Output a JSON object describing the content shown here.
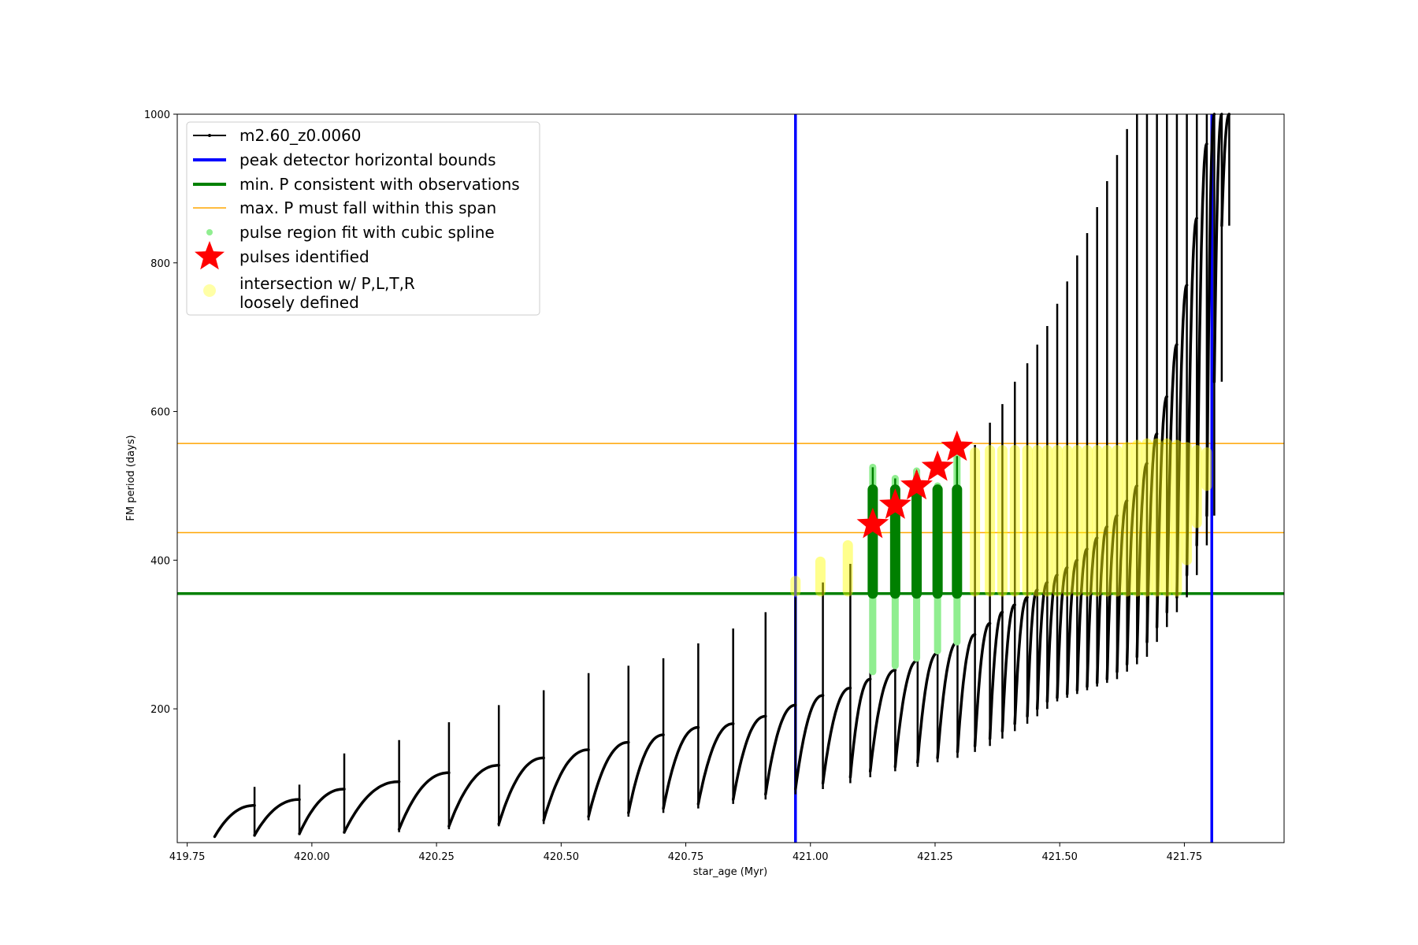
{
  "chart_data": {
    "type": "scatter",
    "title": "",
    "xlabel": "star_age (Myr)",
    "ylabel": "FM period (days)",
    "xlim": [
      419.73,
      421.95
    ],
    "ylim": [
      20,
      1000
    ],
    "xticks": [
      419.75,
      420.0,
      420.25,
      420.5,
      420.75,
      421.0,
      421.25,
      421.5,
      421.75
    ],
    "xtick_labels": [
      "419.75",
      "420.00",
      "420.25",
      "420.50",
      "420.75",
      "421.00",
      "421.25",
      "421.50",
      "421.75"
    ],
    "yticks": [
      200,
      400,
      600,
      800,
      1000
    ],
    "ytick_labels": [
      "200",
      "400",
      "600",
      "800",
      "1000"
    ],
    "grid": false,
    "legend_position": "top-left",
    "colors": {
      "model": "#000000",
      "bounds": "#0000ff",
      "min_p": "#008000",
      "max_p": "#ffa500",
      "spline": "#90ee90",
      "pulse": "#ff0000",
      "intersection": "#ffff00"
    },
    "series": [
      {
        "name": "m2.60_z0.0060",
        "kind": "line-with-dots",
        "pulses": [
          {
            "start": 419.805,
            "end": 419.885,
            "base": 28,
            "peak": 70,
            "spike_top": 95
          },
          {
            "start": 419.885,
            "end": 419.975,
            "base": 30,
            "peak": 78,
            "spike_top": 98
          },
          {
            "start": 419.975,
            "end": 420.065,
            "base": 32,
            "peak": 92,
            "spike_top": 140
          },
          {
            "start": 420.065,
            "end": 420.175,
            "base": 34,
            "peak": 102,
            "spike_top": 158
          },
          {
            "start": 420.175,
            "end": 420.275,
            "base": 38,
            "peak": 114,
            "spike_top": 182
          },
          {
            "start": 420.275,
            "end": 420.375,
            "base": 42,
            "peak": 124,
            "spike_top": 205
          },
          {
            "start": 420.375,
            "end": 420.465,
            "base": 45,
            "peak": 134,
            "spike_top": 225
          },
          {
            "start": 420.465,
            "end": 420.555,
            "base": 50,
            "peak": 145,
            "spike_top": 248
          },
          {
            "start": 420.555,
            "end": 420.635,
            "base": 55,
            "peak": 155,
            "spike_top": 258
          },
          {
            "start": 420.635,
            "end": 420.705,
            "base": 60,
            "peak": 165,
            "spike_top": 268
          },
          {
            "start": 420.705,
            "end": 420.775,
            "base": 66,
            "peak": 175,
            "spike_top": 288
          },
          {
            "start": 420.775,
            "end": 420.845,
            "base": 72,
            "peak": 180,
            "spike_top": 308
          },
          {
            "start": 420.845,
            "end": 420.91,
            "base": 78,
            "peak": 190,
            "spike_top": 330
          },
          {
            "start": 420.91,
            "end": 420.97,
            "base": 85,
            "peak": 205,
            "spike_top": 350
          },
          {
            "start": 420.97,
            "end": 421.025,
            "base": 92,
            "peak": 218,
            "spike_top": 370
          },
          {
            "start": 421.025,
            "end": 421.08,
            "base": 100,
            "peak": 228,
            "spike_top": 395
          },
          {
            "start": 421.08,
            "end": 421.12,
            "base": 108,
            "peak": 240,
            "spike_top": 420
          },
          {
            "start": 421.12,
            "end": 421.17,
            "base": 116,
            "peak": 252,
            "spike_top": 445
          },
          {
            "start": 421.17,
            "end": 421.215,
            "base": 122,
            "peak": 265,
            "spike_top": 470
          },
          {
            "start": 421.215,
            "end": 421.255,
            "base": 128,
            "peak": 275,
            "spike_top": 500
          },
          {
            "start": 421.255,
            "end": 421.295,
            "base": 134,
            "peak": 290,
            "spike_top": 525
          },
          {
            "start": 421.295,
            "end": 421.33,
            "base": 142,
            "peak": 300,
            "spike_top": 555
          },
          {
            "start": 421.33,
            "end": 421.36,
            "base": 150,
            "peak": 315,
            "spike_top": 585
          },
          {
            "start": 421.36,
            "end": 421.385,
            "base": 160,
            "peak": 330,
            "spike_top": 610
          },
          {
            "start": 421.385,
            "end": 421.41,
            "base": 170,
            "peak": 340,
            "spike_top": 640
          },
          {
            "start": 421.41,
            "end": 421.435,
            "base": 180,
            "peak": 350,
            "spike_top": 665
          },
          {
            "start": 421.435,
            "end": 421.455,
            "base": 190,
            "peak": 360,
            "spike_top": 690
          },
          {
            "start": 421.455,
            "end": 421.475,
            "base": 200,
            "peak": 370,
            "spike_top": 715
          },
          {
            "start": 421.475,
            "end": 421.495,
            "base": 210,
            "peak": 380,
            "spike_top": 745
          },
          {
            "start": 421.495,
            "end": 421.515,
            "base": 215,
            "peak": 390,
            "spike_top": 775
          },
          {
            "start": 421.515,
            "end": 421.535,
            "base": 220,
            "peak": 400,
            "spike_top": 810
          },
          {
            "start": 421.535,
            "end": 421.555,
            "base": 225,
            "peak": 415,
            "spike_top": 840
          },
          {
            "start": 421.555,
            "end": 421.575,
            "base": 230,
            "peak": 430,
            "spike_top": 875
          },
          {
            "start": 421.575,
            "end": 421.595,
            "base": 235,
            "peak": 445,
            "spike_top": 910
          },
          {
            "start": 421.595,
            "end": 421.615,
            "base": 240,
            "peak": 460,
            "spike_top": 945
          },
          {
            "start": 421.615,
            "end": 421.635,
            "base": 250,
            "peak": 480,
            "spike_top": 980
          },
          {
            "start": 421.635,
            "end": 421.655,
            "base": 260,
            "peak": 500,
            "spike_top": 1000
          },
          {
            "start": 421.655,
            "end": 421.675,
            "base": 270,
            "peak": 530,
            "spike_top": 1000
          },
          {
            "start": 421.675,
            "end": 421.695,
            "base": 290,
            "peak": 570,
            "spike_top": 1000
          },
          {
            "start": 421.695,
            "end": 421.715,
            "base": 310,
            "peak": 620,
            "spike_top": 1000
          },
          {
            "start": 421.715,
            "end": 421.735,
            "base": 330,
            "peak": 690,
            "spike_top": 1000
          },
          {
            "start": 421.735,
            "end": 421.755,
            "base": 350,
            "peak": 770,
            "spike_top": 1000
          },
          {
            "start": 421.755,
            "end": 421.775,
            "base": 380,
            "peak": 860,
            "spike_top": 1000
          },
          {
            "start": 421.775,
            "end": 421.795,
            "base": 420,
            "peak": 960,
            "spike_top": 1000
          },
          {
            "start": 421.795,
            "end": 421.81,
            "base": 460,
            "peak": 1000,
            "spike_top": 1000
          },
          {
            "start": 421.81,
            "end": 421.825,
            "base": 640,
            "peak": 1000,
            "spike_top": 1000
          },
          {
            "start": 421.825,
            "end": 421.84,
            "base": 850,
            "peak": 1000,
            "spike_top": 1000
          }
        ]
      },
      {
        "name": "peak detector horizontal bounds",
        "kind": "vline",
        "x": [
          420.97,
          421.805
        ]
      },
      {
        "name": "min. P consistent with observations",
        "kind": "hline",
        "y": 355
      },
      {
        "name": "max. P must fall within this span",
        "kind": "hline",
        "y": [
          437,
          557
        ]
      },
      {
        "name": "pulse region fit with cubic spline",
        "kind": "vsegments",
        "segments": [
          {
            "x": 421.125,
            "y0": 250,
            "y1": 525
          },
          {
            "x": 421.17,
            "y0": 258,
            "y1": 510
          },
          {
            "x": 421.213,
            "y0": 268,
            "y1": 520
          },
          {
            "x": 421.255,
            "y0": 278,
            "y1": 500
          },
          {
            "x": 421.294,
            "y0": 290,
            "y1": 540
          }
        ]
      },
      {
        "name": "pulses identified",
        "kind": "stars",
        "x": [
          421.125,
          421.17,
          421.213,
          421.255,
          421.294
        ],
        "y": [
          448,
          474,
          500,
          525,
          552
        ]
      },
      {
        "name": "intersection w/ P,L,T,R\nloosely defined",
        "kind": "vsegments",
        "segments": [
          {
            "x": 420.97,
            "y0": 358,
            "y1": 372
          },
          {
            "x": 421.02,
            "y0": 358,
            "y1": 398
          },
          {
            "x": 421.075,
            "y0": 358,
            "y1": 420
          },
          {
            "x": 421.33,
            "y0": 358,
            "y1": 545
          },
          {
            "x": 421.36,
            "y0": 358,
            "y1": 548
          },
          {
            "x": 421.385,
            "y0": 358,
            "y1": 548
          },
          {
            "x": 421.41,
            "y0": 358,
            "y1": 548
          },
          {
            "x": 421.435,
            "y0": 358,
            "y1": 548
          },
          {
            "x": 421.455,
            "y0": 358,
            "y1": 548
          },
          {
            "x": 421.475,
            "y0": 358,
            "y1": 548
          },
          {
            "x": 421.495,
            "y0": 358,
            "y1": 548
          },
          {
            "x": 421.515,
            "y0": 358,
            "y1": 548
          },
          {
            "x": 421.535,
            "y0": 358,
            "y1": 548
          },
          {
            "x": 421.555,
            "y0": 358,
            "y1": 548
          },
          {
            "x": 421.575,
            "y0": 358,
            "y1": 548
          },
          {
            "x": 421.595,
            "y0": 358,
            "y1": 548
          },
          {
            "x": 421.615,
            "y0": 358,
            "y1": 548
          },
          {
            "x": 421.635,
            "y0": 358,
            "y1": 552
          },
          {
            "x": 421.655,
            "y0": 358,
            "y1": 555
          },
          {
            "x": 421.675,
            "y0": 358,
            "y1": 557
          },
          {
            "x": 421.695,
            "y0": 358,
            "y1": 557
          },
          {
            "x": 421.715,
            "y0": 358,
            "y1": 557
          },
          {
            "x": 421.735,
            "y0": 358,
            "y1": 555
          },
          {
            "x": 421.755,
            "y0": 400,
            "y1": 552
          },
          {
            "x": 421.775,
            "y0": 450,
            "y1": 548
          },
          {
            "x": 421.795,
            "y0": 500,
            "y1": 545
          }
        ]
      }
    ]
  }
}
